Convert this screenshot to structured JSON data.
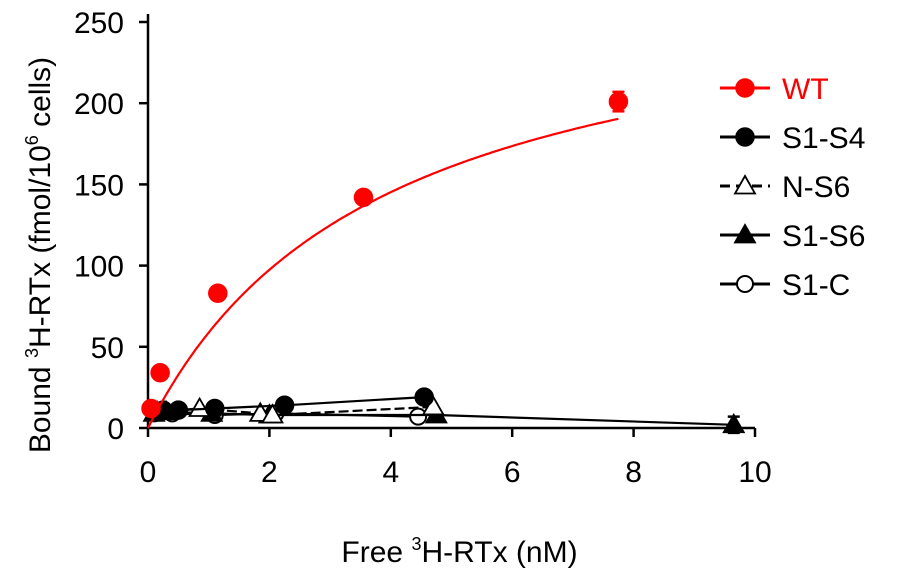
{
  "chart_data": {
    "type": "scatter",
    "xlabel": {
      "pre": "Free ",
      "sup": "3",
      "post": "H-RTx (nM)"
    },
    "ylabel": {
      "pre": "Bound  ",
      "sup1": "3",
      "mid": "H-RTx (fmol/10",
      "sup2": "6",
      "post": " cells)"
    },
    "xlim": [
      0,
      10
    ],
    "ylim": [
      0,
      250
    ],
    "xticks": [
      0,
      2,
      4,
      6,
      8,
      10
    ],
    "yticks": [
      0,
      50,
      100,
      150,
      200,
      250
    ],
    "xtick_labels": [
      "0",
      "2",
      "4",
      "6",
      "8",
      "10"
    ],
    "ytick_labels": [
      "0",
      "50",
      "100",
      "150",
      "200",
      "250"
    ],
    "grid": false,
    "legend_position": "right",
    "series": [
      {
        "name": "WT",
        "color": "#ff0000",
        "marker": "circle-filled",
        "line": "solid",
        "x": [
          0.05,
          0.2,
          1.15,
          3.55,
          7.75
        ],
        "y": [
          12,
          34,
          83,
          142,
          201
        ],
        "yerr": [
          0,
          0,
          0,
          0,
          6
        ],
        "fit": {
          "model": "one-site saturation",
          "bmax": 285,
          "kd": 3.85
        }
      },
      {
        "name": "S1-S4",
        "color": "#000000",
        "marker": "circle-filled",
        "line": "solid",
        "x": [
          0.1,
          0.25,
          0.5,
          1.1,
          2.25,
          4.55
        ],
        "y": [
          10,
          11,
          11,
          12,
          14,
          19
        ]
      },
      {
        "name": "N-S6",
        "color": "#000000",
        "marker": "triangle-open",
        "line": "dashed",
        "x": [
          0.15,
          0.85,
          1.85,
          2.05,
          4.7
        ],
        "y": [
          10,
          12,
          9,
          8,
          13
        ]
      },
      {
        "name": "S1-S6",
        "color": "#000000",
        "marker": "triangle-filled",
        "line": "solid",
        "x": [
          0.1,
          0.3,
          1.05,
          2.0,
          4.75,
          9.65
        ],
        "y": [
          9,
          10,
          9,
          8,
          8,
          2
        ],
        "yerr": [
          0,
          0,
          0,
          0,
          0,
          5
        ]
      },
      {
        "name": "S1-C",
        "color": "#000000",
        "marker": "circle-open",
        "line": "solid",
        "x": [
          0.1,
          0.4,
          1.1,
          2.1,
          4.45
        ],
        "y": [
          9,
          9,
          8,
          9,
          7
        ]
      }
    ]
  }
}
